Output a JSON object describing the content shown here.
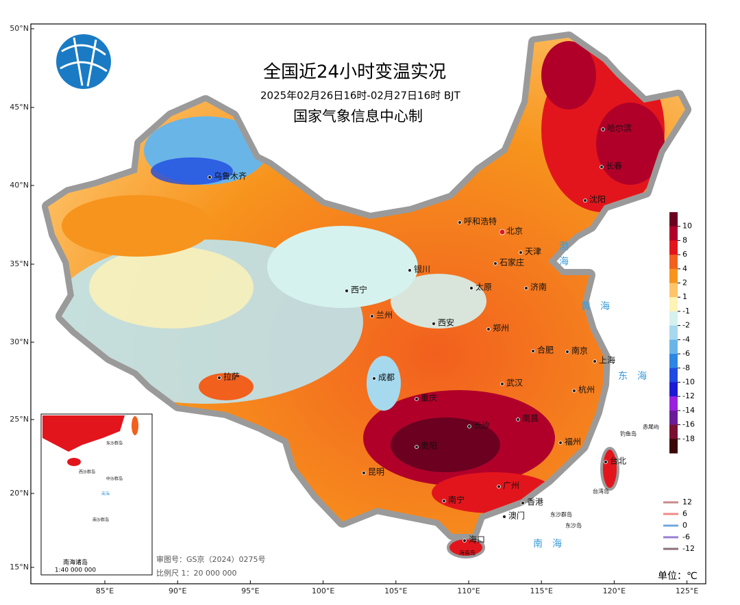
{
  "title": "全国近24小时变温实况",
  "subtitle": "2025年02月26日16时-02月27日16时  BJT",
  "producer": "国家气象信息中心制",
  "lat_labels": [
    "50°N",
    "45°N",
    "40°N",
    "35°N",
    "30°N",
    "25°N",
    "20°N",
    "15°N"
  ],
  "lon_labels": [
    "85°E",
    "90°E",
    "95°E",
    "100°E",
    "105°E",
    "110°E",
    "115°E",
    "120°E",
    "125°E"
  ],
  "cities": [
    "乌鲁木齐",
    "呼和浩特",
    "北京",
    "天津",
    "哈尔滨",
    "长春",
    "沈阳",
    "石家庄",
    "太原",
    "济南",
    "银川",
    "西宁",
    "兰州",
    "西安",
    "郑州",
    "合肥",
    "南京",
    "上海",
    "杭州",
    "武汉",
    "成都",
    "拉萨",
    "重庆",
    "长沙",
    "南昌",
    "福州",
    "贵阳",
    "昆明",
    "南宁",
    "广州",
    "香港",
    "澳门",
    "海口",
    "台北"
  ],
  "seas": [
    "渤海",
    "黄海",
    "东海",
    "南海"
  ],
  "islands": [
    "钓鱼岛",
    "赤尾屿",
    "台湾岛",
    "东沙群岛",
    "东沙岛",
    "海南岛"
  ],
  "colorbar": {
    "levels": [
      10,
      8,
      6,
      4,
      2,
      1,
      -1,
      -2,
      -4,
      -6,
      -8,
      -10,
      -12,
      -14,
      -16,
      -18
    ],
    "colors": [
      "#6b0020",
      "#b0002a",
      "#e3151c",
      "#f2601e",
      "#f7941d",
      "#fdc46a",
      "#fff3b5",
      "#d6f2ee",
      "#a6d9ee",
      "#69b5e8",
      "#2d86e3",
      "#1f4be0",
      "#1c1ad2",
      "#9a22de",
      "#6a1c98",
      "#7a1030",
      "#3a0608"
    ]
  },
  "contour_legend": {
    "levels": [
      12,
      6,
      0,
      -6,
      -12
    ],
    "colors": [
      "#c98a8a",
      "#f08a8a",
      "#6fa8dc",
      "#9a7fd1",
      "#8b6f7a"
    ]
  },
  "inset": {
    "title": "南海诸岛",
    "scale": "1:40 000 000",
    "labels": [
      "东沙群岛",
      "西沙群岛",
      "中沙群岛",
      "南海",
      "南沙群岛"
    ]
  },
  "map_number": "审图号：GS京（2024）0275号",
  "scale": "比例尺 1：20 000 000",
  "unit": "单位：℃"
}
